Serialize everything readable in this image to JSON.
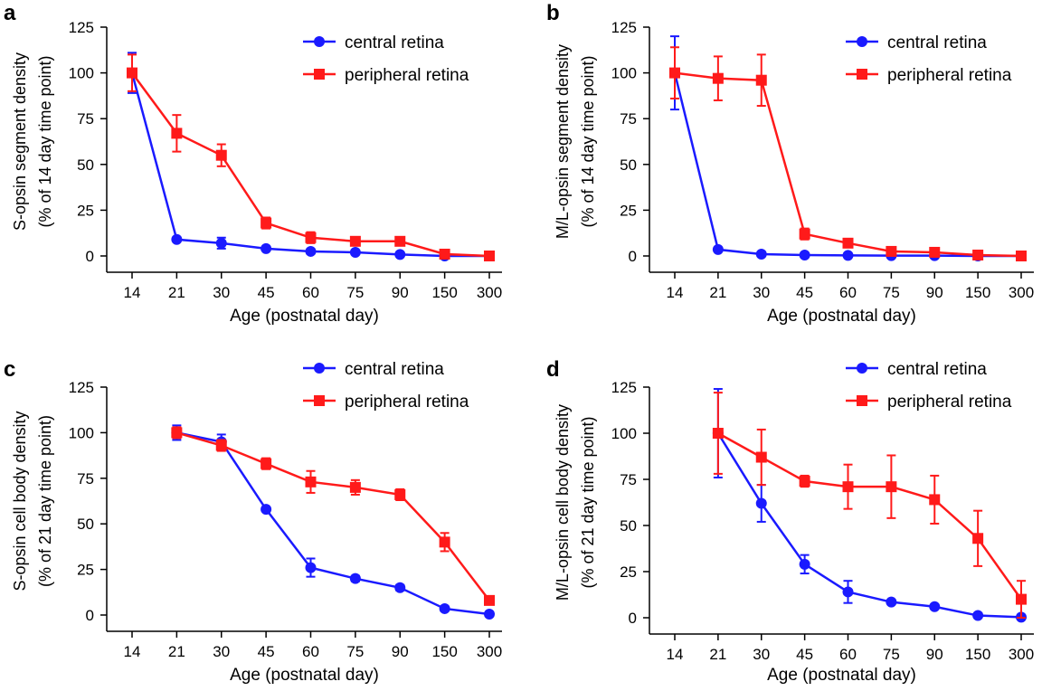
{
  "figure": {
    "colors": {
      "central": "#1a1aff",
      "peripheral": "#ff1a1a"
    }
  },
  "chart_data": [
    {
      "panel": "a",
      "type": "line",
      "categories": [
        "14",
        "21",
        "30",
        "45",
        "60",
        "75",
        "90",
        "150",
        "300"
      ],
      "x_positions": [
        0,
        1,
        2,
        3,
        4,
        5,
        6,
        7,
        8
      ],
      "xlabel": "Age (postnatal day)",
      "ylabel_line1": "S-opsin segment density",
      "ylabel_line2": "(% of 14 day time point)",
      "ylim": [
        0,
        125
      ],
      "yticks": [
        "0",
        "25",
        "50",
        "75",
        "100",
        "125"
      ],
      "legend_position": "top-right",
      "series": [
        {
          "name": "central retina",
          "marker": "circle",
          "color": "#1a1aff",
          "values": [
            100,
            9,
            7,
            4,
            2.5,
            2,
            0.8,
            0,
            0
          ],
          "errors": [
            11,
            1,
            3,
            1,
            0.5,
            0.5,
            0.3,
            0,
            0
          ]
        },
        {
          "name": "peripheral retina",
          "marker": "square",
          "color": "#ff1a1a",
          "values": [
            100,
            67,
            55,
            18,
            10,
            8,
            8,
            1,
            0
          ],
          "errors": [
            10,
            10,
            6,
            3,
            3,
            1,
            1,
            1,
            0
          ]
        }
      ]
    },
    {
      "panel": "b",
      "type": "line",
      "categories": [
        "14",
        "21",
        "30",
        "45",
        "60",
        "75",
        "90",
        "150",
        "300"
      ],
      "x_positions": [
        0,
        1,
        2,
        3,
        4,
        5,
        6,
        7,
        8
      ],
      "xlabel": "Age (postnatal day)",
      "ylabel_line1": "M/L-opsin segment density",
      "ylabel_line2": "(% of 14 day time point)",
      "ylim": [
        0,
        125
      ],
      "yticks": [
        "0",
        "25",
        "50",
        "75",
        "100",
        "125"
      ],
      "legend_position": "top-right",
      "series": [
        {
          "name": "central retina",
          "marker": "circle",
          "color": "#1a1aff",
          "values": [
            100,
            3.5,
            1,
            0.5,
            0.3,
            0.2,
            0.2,
            0,
            0
          ],
          "errors": [
            20,
            0.8,
            0.3,
            0.2,
            0.1,
            0.1,
            0.1,
            0,
            0
          ]
        },
        {
          "name": "peripheral retina",
          "marker": "square",
          "color": "#ff1a1a",
          "values": [
            100,
            97,
            96,
            12,
            7,
            2.5,
            2,
            0.5,
            0
          ],
          "errors": [
            14,
            12,
            14,
            3,
            1.5,
            1,
            1,
            0.5,
            0
          ]
        }
      ]
    },
    {
      "panel": "c",
      "type": "line",
      "categories": [
        "14",
        "21",
        "30",
        "45",
        "60",
        "75",
        "90",
        "150",
        "300"
      ],
      "x_positions": [
        0,
        1,
        2,
        3,
        4,
        5,
        6,
        7,
        8
      ],
      "xlabel": "Age (postnatal day)",
      "ylabel_line1": "S-opsin cell body density",
      "ylabel_line2": "(% of 21 day time point)",
      "ylim": [
        0,
        125
      ],
      "yticks": [
        "0",
        "25",
        "50",
        "75",
        "100",
        "125"
      ],
      "legend_position": "top-right",
      "series": [
        {
          "name": "central retina",
          "marker": "circle",
          "color": "#1a1aff",
          "values": [
            null,
            100,
            95,
            58,
            26,
            20,
            15,
            3.5,
            0.5
          ],
          "errors": [
            null,
            4,
            4,
            1,
            5,
            1.5,
            1.5,
            0.5,
            0.2
          ]
        },
        {
          "name": "peripheral retina",
          "marker": "square",
          "color": "#ff1a1a",
          "values": [
            null,
            100,
            93,
            83,
            73,
            70,
            66,
            40,
            8
          ],
          "errors": [
            null,
            3,
            3,
            3,
            6,
            4,
            3,
            5,
            1
          ]
        }
      ]
    },
    {
      "panel": "d",
      "type": "line",
      "categories": [
        "14",
        "21",
        "30",
        "45",
        "60",
        "75",
        "90",
        "150",
        "300"
      ],
      "x_positions": [
        0,
        1,
        2,
        3,
        4,
        5,
        6,
        7,
        8
      ],
      "xlabel": "Age (postnatal day)",
      "ylabel_line1": "M/L-opsin cell body density",
      "ylabel_line2": "(% of 21 day time point)",
      "ylim": [
        0,
        125
      ],
      "yticks": [
        "0",
        "25",
        "50",
        "75",
        "100",
        "125"
      ],
      "legend_position": "top-right",
      "series": [
        {
          "name": "central retina",
          "marker": "circle",
          "color": "#1a1aff",
          "values": [
            null,
            100,
            62,
            29,
            14,
            8.5,
            6,
            1.2,
            0.3
          ],
          "errors": [
            null,
            24,
            10,
            5,
            6,
            1,
            1,
            0.3,
            0.1
          ]
        },
        {
          "name": "peripheral retina",
          "marker": "square",
          "color": "#ff1a1a",
          "values": [
            null,
            100,
            87,
            74,
            71,
            71,
            64,
            43,
            10
          ],
          "errors": [
            null,
            22,
            15,
            3,
            12,
            17,
            13,
            15,
            10
          ]
        }
      ]
    }
  ]
}
